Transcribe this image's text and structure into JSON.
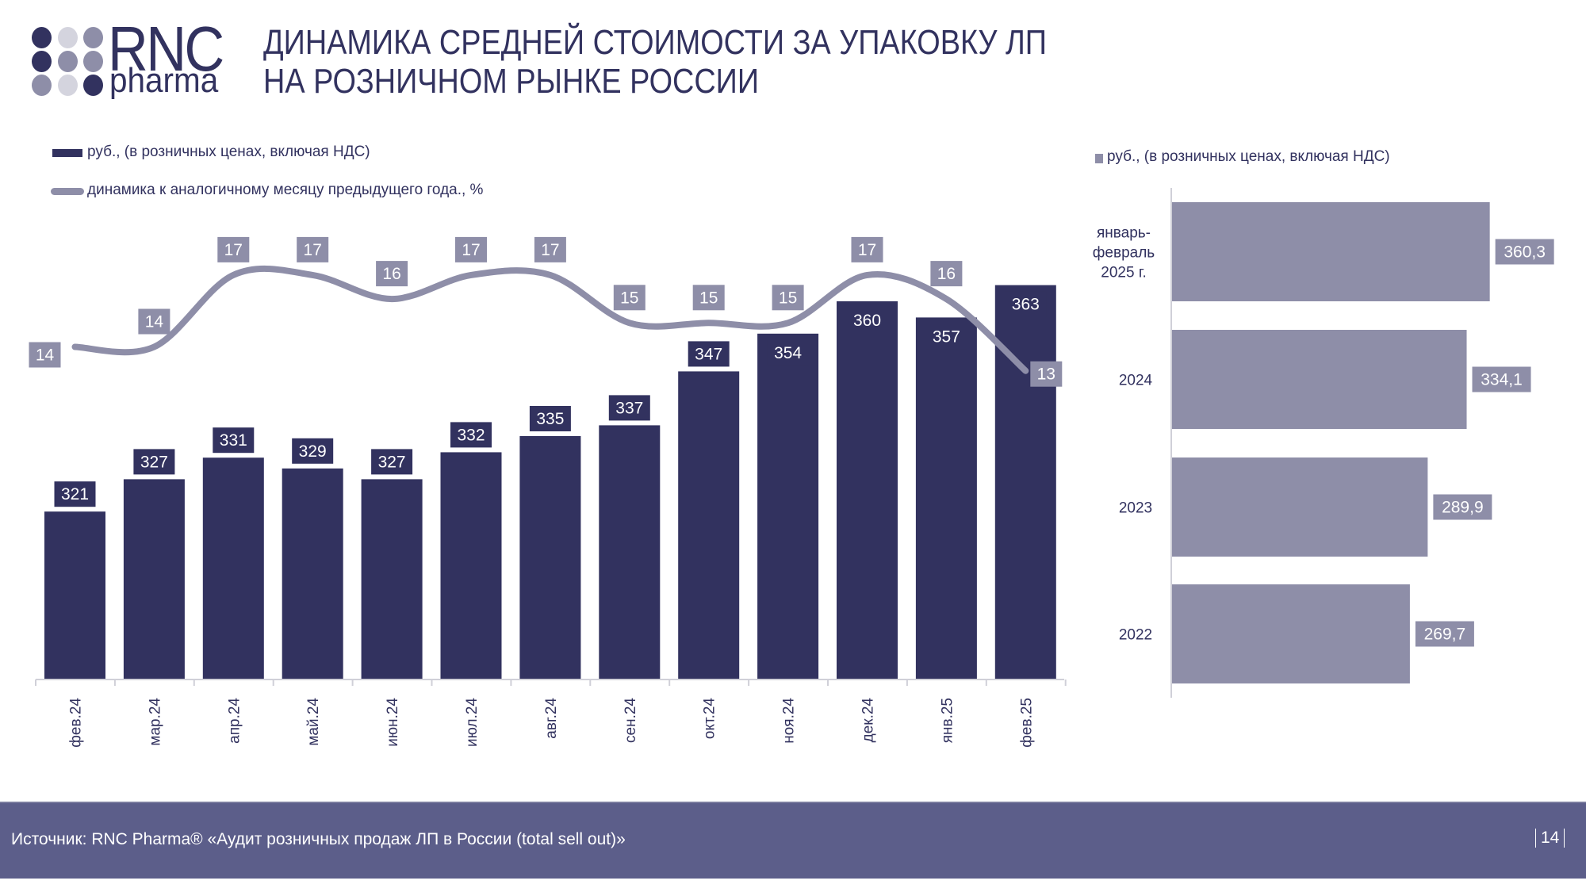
{
  "header": {
    "logo_text": "RNC",
    "logo_subtext": "pharma",
    "title_line1": "ДИНАМИКА СРЕДНЕЙ СТОИМОСТИ ЗА УПАКОВКУ ЛП",
    "title_line2": "НА РОЗНИЧНОМ РЫНКЕ РОССИИ"
  },
  "colors": {
    "primary": "#32325f",
    "secondary": "#8e8ea8",
    "footer": "#5c5e8a"
  },
  "chart_data": [
    {
      "type": "bar+line",
      "legend": {
        "bars": "руб., (в розничных ценах, включая НДС)",
        "line": "динамика к аналогичному месяцу предыдущего года., %"
      },
      "categories": [
        "фев.24",
        "мар.24",
        "апр.24",
        "май.24",
        "июн.24",
        "июл.24",
        "авг.24",
        "сен.24",
        "окт.24",
        "ноя.24",
        "дек.24",
        "янв.25",
        "фев.25"
      ],
      "series": [
        {
          "name": "руб., (в розничных ценах, включая НДС)",
          "type": "bar",
          "values": [
            321,
            327,
            331,
            329,
            327,
            332,
            335,
            337,
            347,
            354,
            360,
            357,
            363
          ]
        },
        {
          "name": "динамика к аналогичному месяцу предыдущего года., %",
          "type": "line",
          "values": [
            14,
            14,
            17,
            17,
            16,
            17,
            17,
            15,
            15,
            15,
            17,
            16,
            13
          ]
        }
      ],
      "bar_axis_min": 290
    },
    {
      "type": "bar",
      "orientation": "horizontal",
      "legend": "руб., (в розничных ценах, включая НДС)",
      "categories": [
        "январь-\nфевраль\n2025 г.",
        "2024",
        "2023",
        "2022"
      ],
      "values": [
        "360,3",
        "334,1",
        "289,9",
        "269,7"
      ],
      "numeric": [
        360.3,
        334.1,
        289.9,
        269.7
      ],
      "xlim": [
        0,
        400
      ]
    }
  ],
  "footer": {
    "source": "Источник: RNC Pharma® «Аудит розничных продаж ЛП в России (total sell out)»",
    "page": "14"
  }
}
